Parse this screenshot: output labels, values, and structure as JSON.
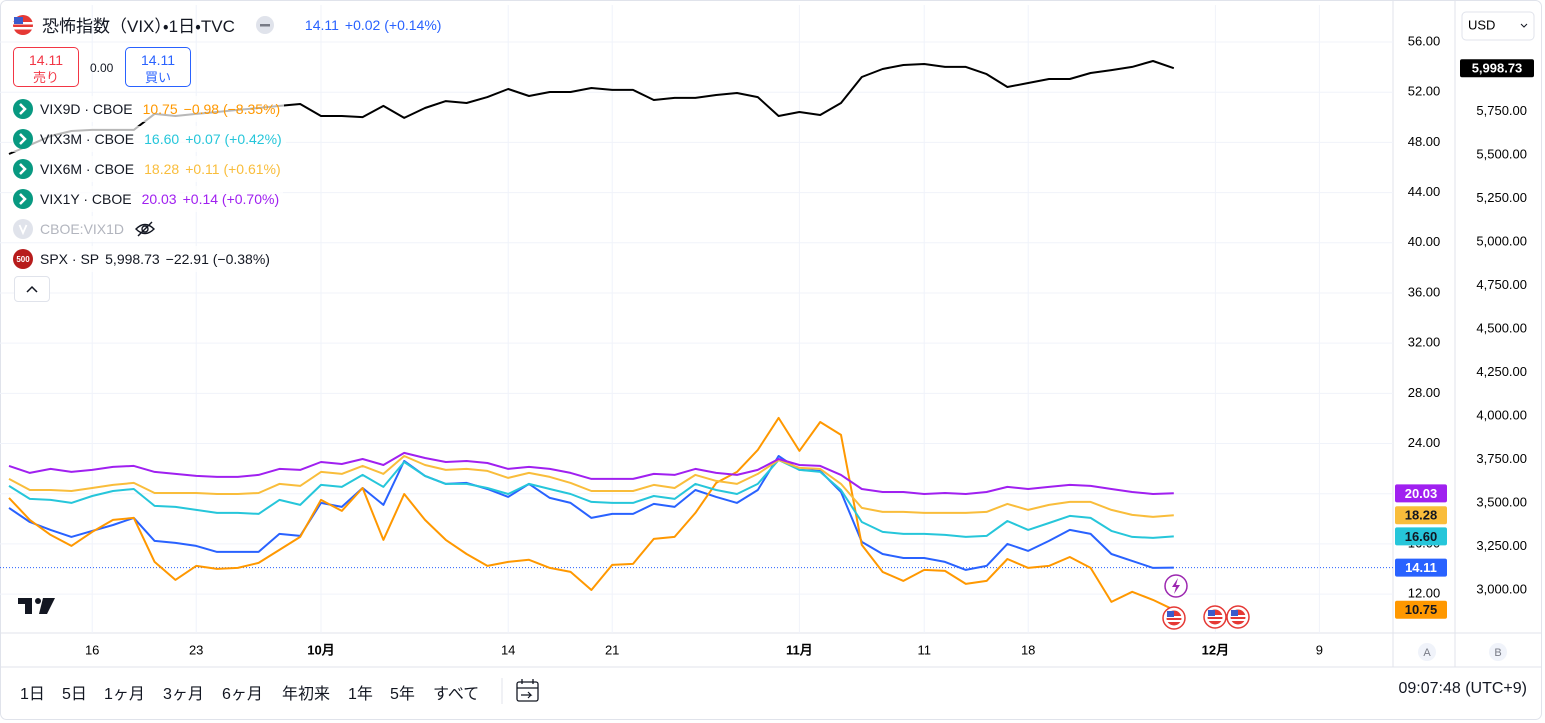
{
  "header": {
    "sell": {
      "price": "14.11",
      "label": "売り"
    },
    "spread": "0.00",
    "buy": {
      "price": "14.11",
      "label": "買い"
    },
    "hidden_symbol": "CBOE:VIX1D",
    "currency": "USD",
    "scale_buttons": [
      "A",
      "B"
    ]
  },
  "chart_data": {
    "type": "line",
    "title": "恐怖指数（VIX）・1日・TVC",
    "categories": [
      null,
      null,
      null,
      null,
      "16",
      null,
      null,
      null,
      null,
      "23",
      null,
      null,
      null,
      null,
      null,
      "10月",
      null,
      null,
      null,
      null,
      null,
      null,
      null,
      null,
      "14",
      null,
      null,
      null,
      null,
      "21",
      null,
      null,
      null,
      null,
      null,
      null,
      null,
      null,
      "11月",
      null,
      null,
      null,
      null,
      null,
      "11",
      null,
      null,
      null,
      null,
      "18",
      null,
      null,
      null,
      null,
      null,
      null,
      null,
      null,
      "12月",
      null,
      null,
      null,
      null,
      "9",
      null,
      null,
      null
    ],
    "ylim": [
      8.9,
      58.95
    ],
    "yticks": [
      {
        "value": 12,
        "label": "12.00"
      },
      {
        "value": 16,
        "label": "16.00"
      },
      {
        "value": 20,
        "label": "20.00"
      },
      {
        "value": 24,
        "label": "24.00"
      },
      {
        "value": 28,
        "label": "28.00"
      },
      {
        "value": 32,
        "label": "32.00"
      },
      {
        "value": 36,
        "label": "36.00"
      },
      {
        "value": 40,
        "label": "40.00"
      },
      {
        "value": 44,
        "label": "44.00"
      },
      {
        "value": 48,
        "label": "48.00"
      },
      {
        "value": 52,
        "label": "52.00"
      },
      {
        "value": 56,
        "label": "56.00"
      }
    ],
    "y2lim": [
      2753,
      6362
    ],
    "y2ticks": [
      {
        "value": 3000,
        "label": "3,000.00"
      },
      {
        "value": 3250,
        "label": "3,250.00"
      },
      {
        "value": 3500,
        "label": "3,500.00"
      },
      {
        "value": 3750,
        "label": "3,750.00"
      },
      {
        "value": 4000,
        "label": "4,000.00"
      },
      {
        "value": 4250,
        "label": "4,250.00"
      },
      {
        "value": 4500,
        "label": "4,500.00"
      },
      {
        "value": 4750,
        "label": "4,750.00"
      },
      {
        "value": 5000,
        "label": "5,000.00"
      },
      {
        "value": 5250,
        "label": "5,250.00"
      },
      {
        "value": 5500,
        "label": "5,500.00"
      },
      {
        "value": 5750,
        "label": "5,750.00"
      },
      {
        "value": 6000,
        "label": "6,000.00"
      }
    ],
    "grid": true,
    "series": [
      {
        "color": "#2962ff",
        "price": "14.11",
        "change": "+0.02 (+0.14%)",
        "values": [
          18.87,
          17.75,
          17.12,
          16.56,
          17.04,
          17.51,
          18.07,
          16.24,
          16.08,
          15.84,
          15.36,
          15.36,
          15.36,
          16.8,
          16.64,
          19.27,
          18.95,
          20.46,
          19.11,
          22.61,
          21.42,
          20.78,
          20.86,
          20.38,
          19.75,
          20.78,
          19.67,
          19.27,
          18.07,
          18.39,
          18.39,
          19.19,
          18.95,
          20.3,
          19.75,
          19.27,
          20.3,
          23.01,
          21.9,
          21.82,
          20.14,
          16.16,
          15.2,
          14.88,
          14.88,
          14.57,
          13.93,
          14.25,
          16.0,
          15.44,
          16.24,
          17.12,
          16.8,
          15.2,
          14.65,
          14.09,
          14.11,
          null,
          null,
          null,
          null,
          null,
          null,
          null,
          null,
          null,
          null
        ]
      },
      {
        "name": "VIX9D · CBOE",
        "color": "#ff9800",
        "price": "10.75",
        "change": "−0.98 (−8.35%)",
        "values": [
          19.67,
          17.91,
          16.72,
          15.84,
          16.96,
          17.91,
          18.07,
          14.57,
          13.13,
          14.25,
          14.01,
          14.09,
          14.49,
          15.52,
          16.56,
          19.51,
          18.63,
          20.46,
          16.32,
          19.98,
          17.91,
          16.32,
          15.2,
          14.25,
          14.57,
          14.73,
          14.09,
          13.77,
          12.33,
          14.33,
          14.41,
          16.4,
          16.56,
          18.47,
          20.86,
          21.74,
          23.49,
          26.04,
          23.41,
          25.72,
          24.69,
          15.92,
          13.77,
          13.05,
          13.93,
          13.85,
          12.81,
          13.05,
          14.8,
          14.09,
          14.25,
          14.96,
          14.09,
          11.38,
          12.18,
          11.54,
          10.75,
          null,
          null,
          null,
          null,
          null,
          null,
          null,
          null,
          null,
          null
        ]
      },
      {
        "name": "VIX3M · CBOE",
        "color": "#26c6da",
        "price": "16.60",
        "change": "+0.07 (+0.42%)",
        "values": [
          20.62,
          19.59,
          19.51,
          19.27,
          19.82,
          20.22,
          20.38,
          19.03,
          18.95,
          18.71,
          18.47,
          18.47,
          18.39,
          19.51,
          19.11,
          20.7,
          20.54,
          21.5,
          20.54,
          22.53,
          21.42,
          20.78,
          20.78,
          20.46,
          19.98,
          20.78,
          20.38,
          19.98,
          19.35,
          19.27,
          19.27,
          19.82,
          19.59,
          20.78,
          20.3,
          19.98,
          20.78,
          22.69,
          21.9,
          21.74,
          20.3,
          17.75,
          16.96,
          16.8,
          16.8,
          16.72,
          16.56,
          16.64,
          17.83,
          17.12,
          17.67,
          18.23,
          18.07,
          17.04,
          16.56,
          16.48,
          16.6,
          null,
          null,
          null,
          null,
          null,
          null,
          null,
          null,
          null,
          null
        ]
      },
      {
        "name": "VIX6M · CBOE",
        "color": "#f9bd3b",
        "price": "18.28",
        "change": "+0.11 (+0.61%)",
        "values": [
          21.18,
          20.3,
          20.3,
          20.22,
          20.46,
          20.7,
          20.86,
          20.06,
          20.06,
          20.06,
          19.98,
          19.98,
          20.06,
          20.78,
          20.62,
          21.74,
          21.58,
          22.22,
          21.58,
          23.01,
          22.29,
          21.9,
          21.98,
          21.82,
          21.26,
          21.66,
          21.34,
          20.86,
          20.22,
          20.22,
          20.22,
          20.7,
          20.46,
          21.5,
          21.02,
          20.78,
          21.58,
          22.69,
          22.06,
          21.98,
          20.78,
          18.87,
          18.55,
          18.55,
          18.47,
          18.47,
          18.47,
          18.55,
          19.19,
          18.71,
          19.11,
          19.35,
          19.35,
          18.71,
          18.31,
          18.15,
          18.28,
          null,
          null,
          null,
          null,
          null,
          null,
          null,
          null,
          null,
          null
        ]
      },
      {
        "name": "VIX1Y · CBOE",
        "color": "#a020f0",
        "price": "20.03",
        "change": "+0.14 (+0.70%)",
        "values": [
          22.22,
          21.66,
          21.98,
          21.74,
          21.9,
          22.14,
          22.22,
          21.74,
          21.58,
          21.42,
          21.34,
          21.34,
          21.5,
          21.98,
          21.9,
          22.53,
          22.37,
          22.77,
          22.29,
          23.25,
          22.85,
          22.53,
          22.61,
          22.45,
          21.98,
          22.14,
          21.98,
          21.66,
          21.18,
          21.18,
          21.18,
          21.58,
          21.5,
          21.98,
          21.66,
          21.5,
          21.9,
          22.77,
          22.29,
          22.22,
          21.5,
          20.38,
          20.14,
          20.14,
          19.98,
          20.06,
          19.98,
          20.14,
          20.54,
          20.38,
          20.54,
          20.7,
          20.62,
          20.38,
          20.14,
          19.98,
          20.03,
          null,
          null,
          null,
          null,
          null,
          null,
          null,
          null,
          null,
          null
        ]
      },
      {
        "name": "SPX · SP",
        "color": "#000000",
        "axis": "y2",
        "price": "5,998.73",
        "change": "−22.91 (−0.38%)",
        "values": [
          5506,
          5557,
          5609,
          5638,
          5644,
          5644,
          5644,
          5736,
          5724,
          5736,
          5747,
          5759,
          5770,
          5782,
          5793,
          5724,
          5724,
          5718,
          5782,
          5713,
          5770,
          5810,
          5799,
          5833,
          5879,
          5839,
          5862,
          5862,
          5885,
          5874,
          5874,
          5816,
          5828,
          5828,
          5845,
          5856,
          5833,
          5724,
          5747,
          5730,
          5799,
          5948,
          5994,
          6017,
          6023,
          6006,
          6006,
          5965,
          5891,
          5914,
          5937,
          5937,
          5971,
          5988,
          6006,
          6040,
          5998.73,
          null,
          null,
          null,
          null,
          null,
          null,
          null,
          null,
          null,
          null
        ]
      }
    ]
  },
  "toolbar": {
    "ranges": [
      "1日",
      "5日",
      "1ヶ月",
      "3ヶ月",
      "6ヶ月",
      "年初来",
      "1年",
      "5年",
      "すべて"
    ],
    "time": "09:07:48 (UTC+9)"
  }
}
